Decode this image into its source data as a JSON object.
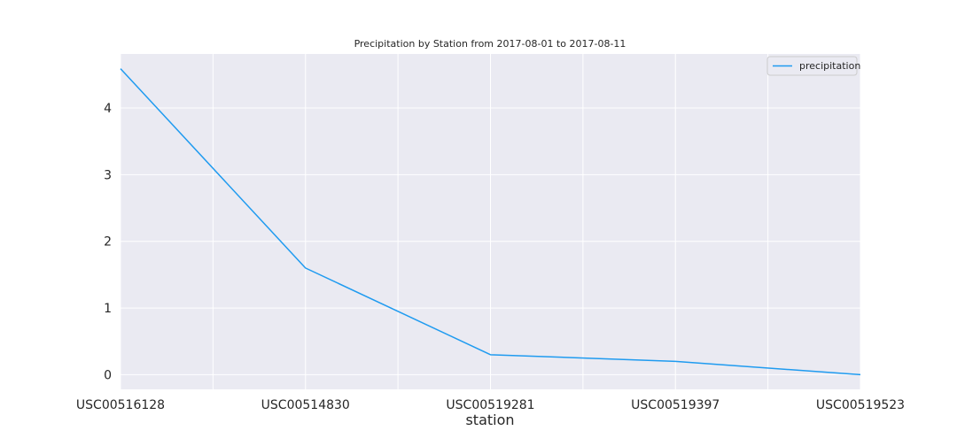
{
  "chart_data": {
    "type": "line",
    "title": "Precipitation by Station from 2017-08-01 to 2017-08-11",
    "xlabel": "station",
    "ylabel": "",
    "categories": [
      "USC00516128",
      "USC00514830",
      "USC00519281",
      "USC00519397",
      "USC00519523"
    ],
    "series": [
      {
        "name": "precipitation",
        "values": [
          4.59,
          1.6,
          0.3,
          0.2,
          0.0
        ],
        "color": "#1f9bf0"
      }
    ],
    "ylim": [
      -0.22,
      4.81
    ],
    "yticks": [
      0,
      1,
      2,
      3,
      4
    ],
    "grid": true,
    "legend": "top-right",
    "colors": {
      "plot_background": "#eaeaf2",
      "grid": "#ffffff",
      "text": "#262626"
    }
  }
}
